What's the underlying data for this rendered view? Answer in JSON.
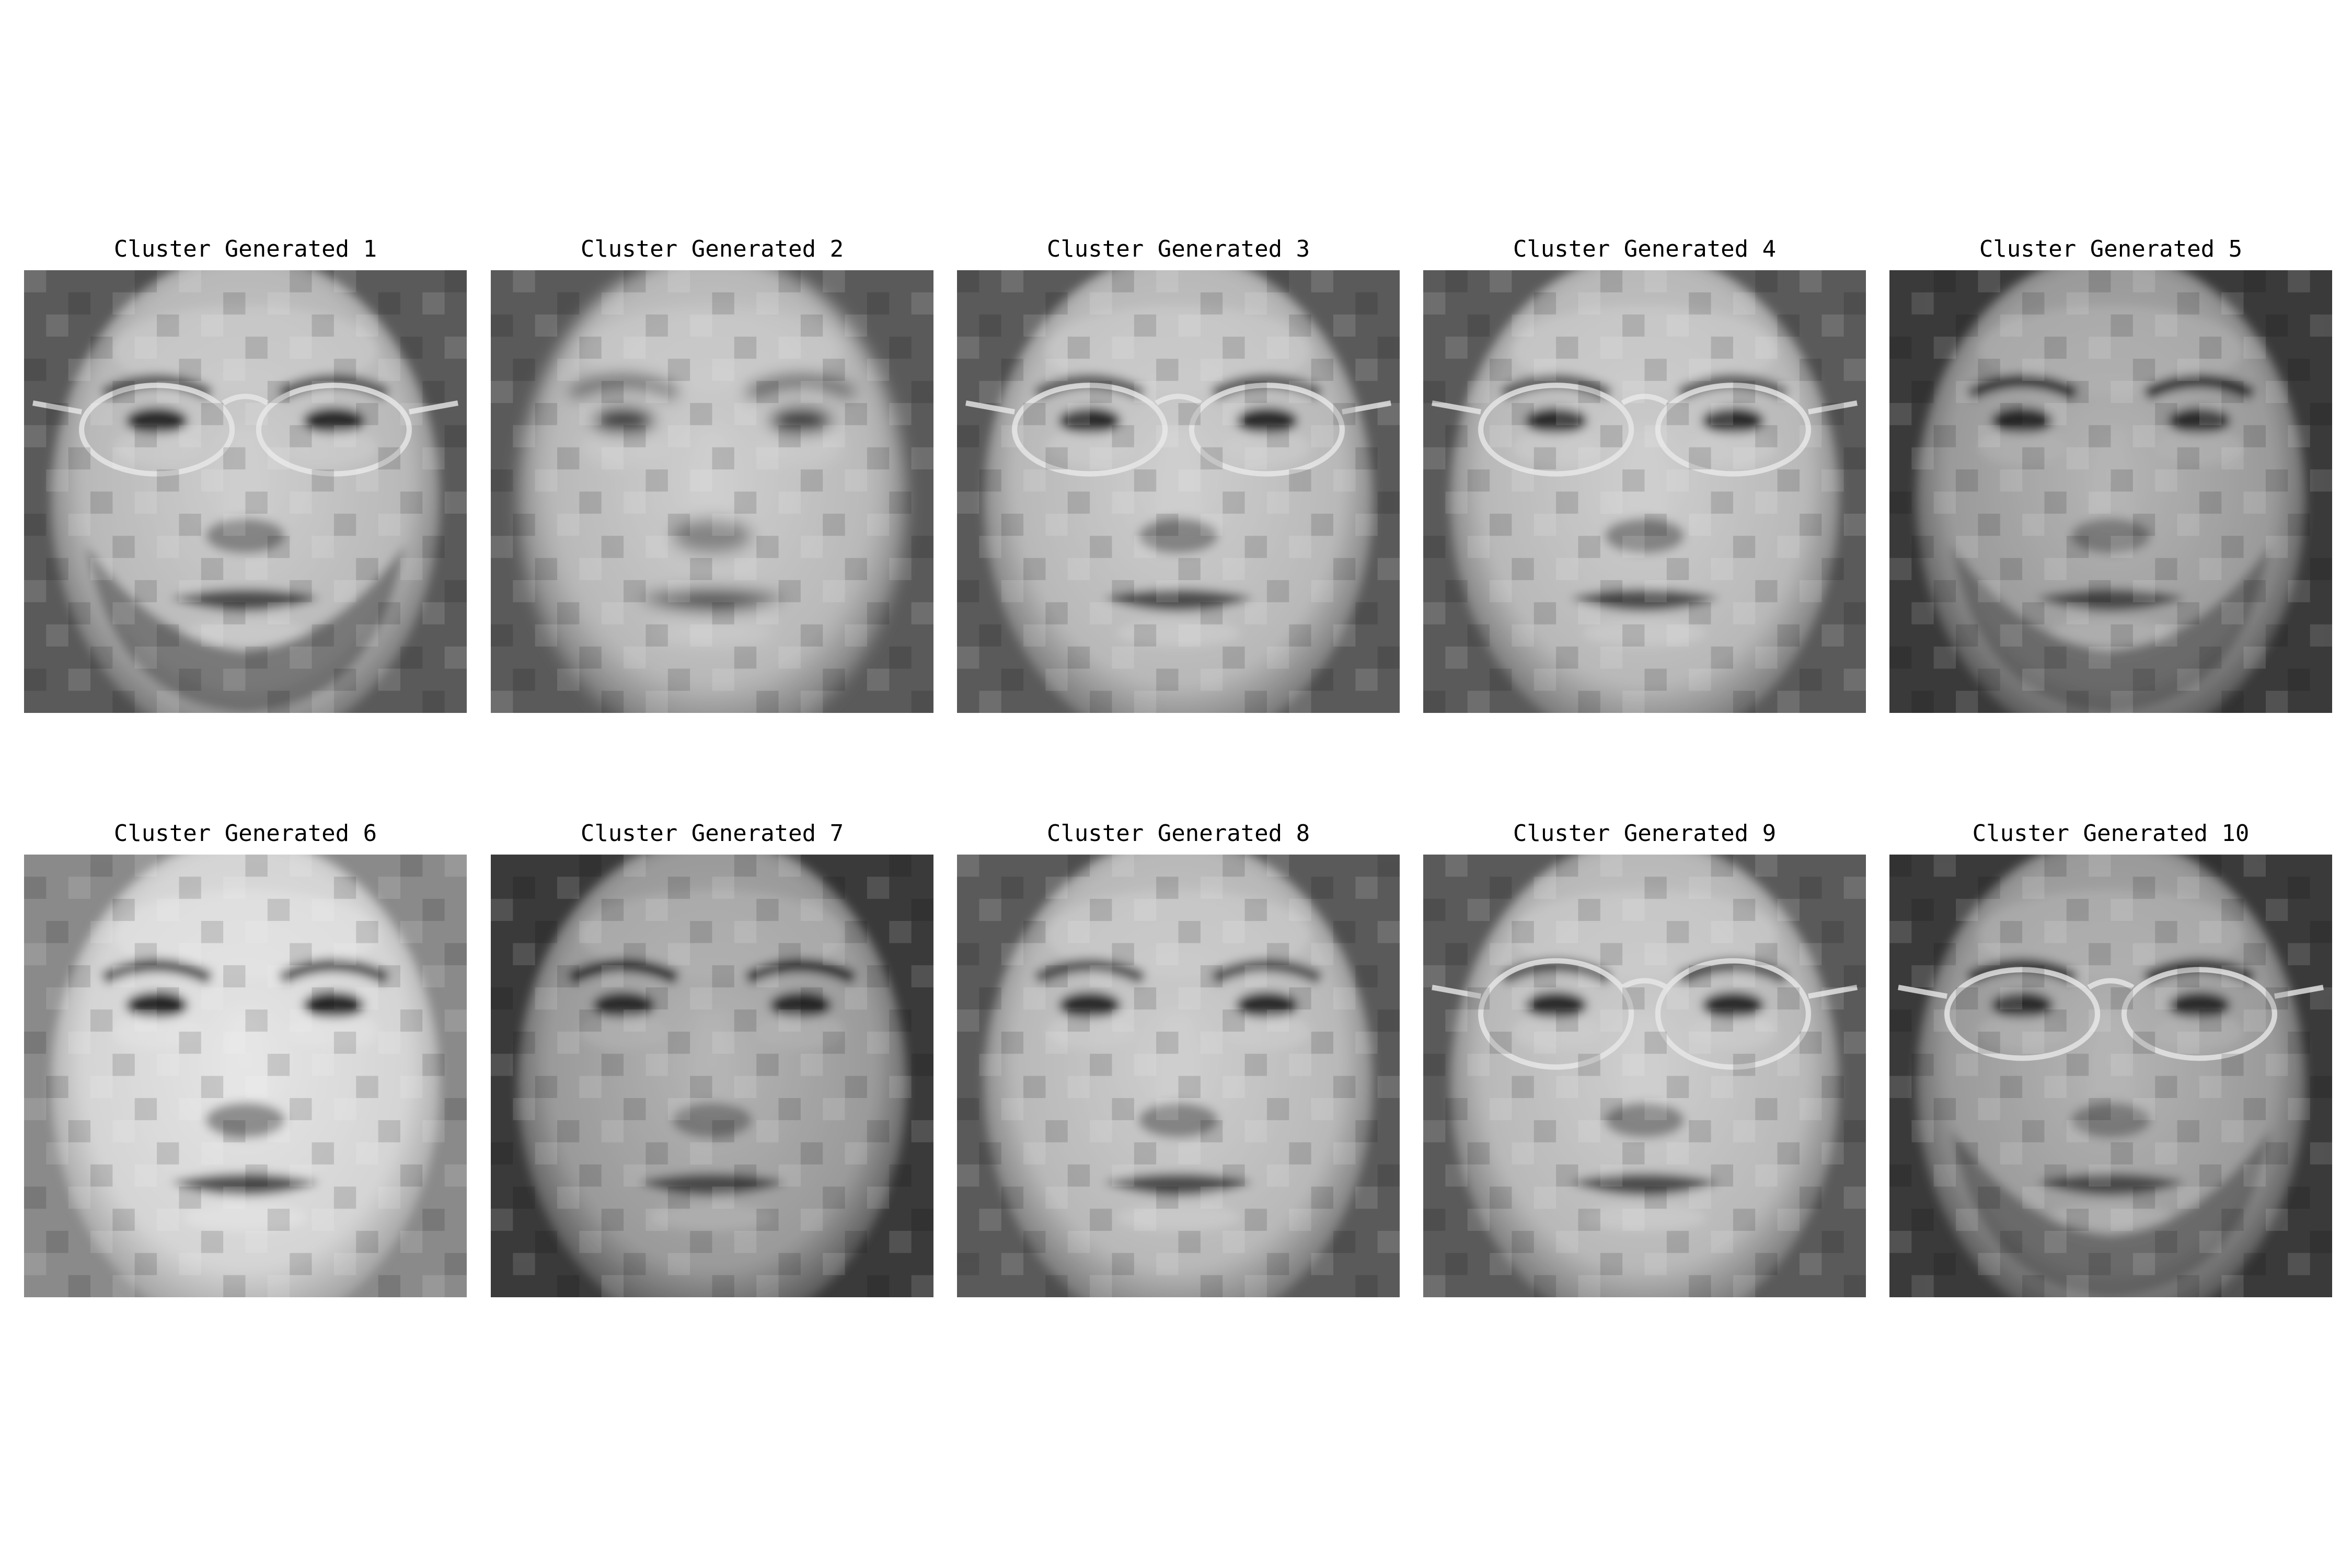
{
  "figure": {
    "panels": [
      {
        "title": "Cluster Generated 1",
        "variant": "glasses-beard"
      },
      {
        "title": "Cluster Generated 2",
        "variant": "plain-blurry"
      },
      {
        "title": "Cluster Generated 3",
        "variant": "glasses"
      },
      {
        "title": "Cluster Generated 4",
        "variant": "glasses-tilt"
      },
      {
        "title": "Cluster Generated 5",
        "variant": "beard-dark"
      },
      {
        "title": "Cluster Generated 6",
        "variant": "plain-bright"
      },
      {
        "title": "Cluster Generated 7",
        "variant": "plain-dark"
      },
      {
        "title": "Cluster Generated 8",
        "variant": "plain"
      },
      {
        "title": "Cluster Generated 9",
        "variant": "glasses-round"
      },
      {
        "title": "Cluster Generated 10",
        "variant": "glasses-beard-dark"
      }
    ]
  },
  "colors": {
    "background": "#ffffff",
    "title_text": "#000000"
  }
}
